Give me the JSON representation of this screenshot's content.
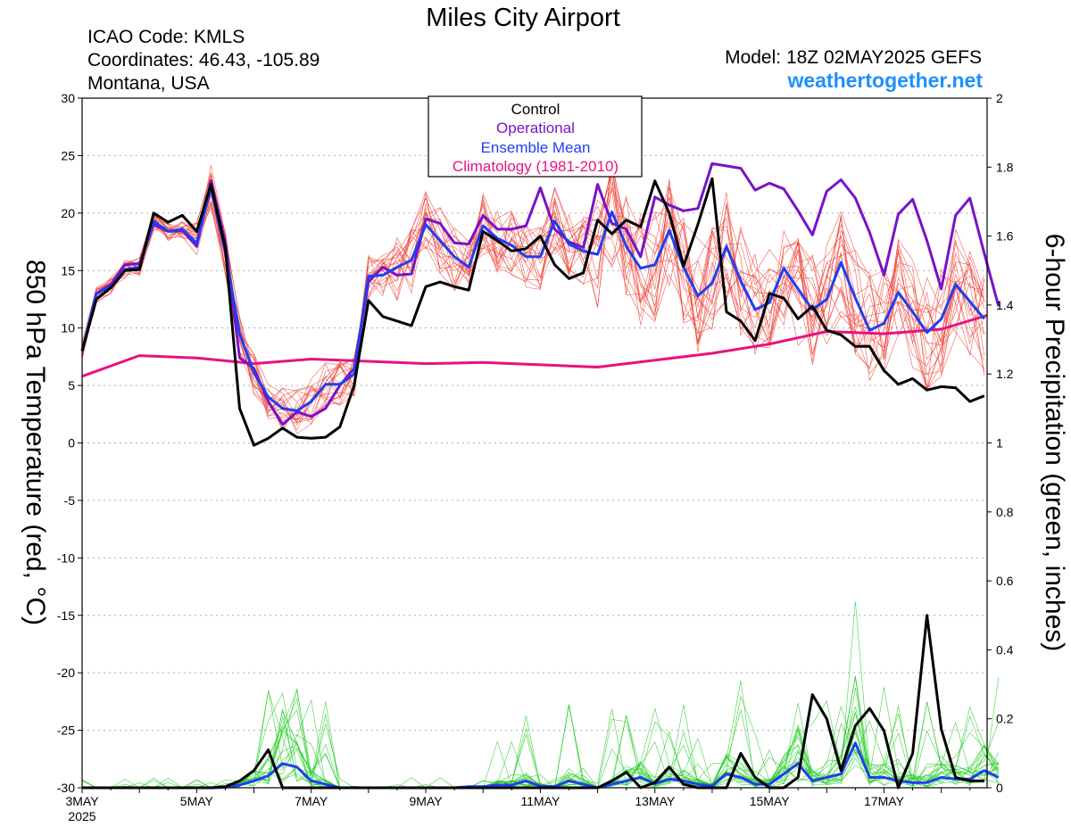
{
  "header": {
    "title": "Miles City Airport",
    "icao": "ICAO Code: KMLS",
    "coords": "Coordinates: 46.43, -105.89",
    "region": "Montana, USA",
    "model": "Model: 18Z 02MAY2025 GEFS",
    "site": "weathertogether.net"
  },
  "colors": {
    "members_temp": "#ee3b2f",
    "members_precip": "#22cc22",
    "control": "#000000",
    "operational": "#7a12c8",
    "mean": "#1f3ff0",
    "climatology": "#e8127f",
    "site": "#1e90ff"
  },
  "chart_data": {
    "type": "line",
    "title": "Miles City Airport",
    "ylabel_left": "850 hPa Temperature (red, °C)",
    "ylabel_right": "6-hour Precipitation (green, inches)",
    "ylim_left": [
      -30,
      30
    ],
    "ylim_right": [
      0,
      2
    ],
    "xlim": [
      0,
      15.8
    ],
    "grid": true,
    "legend_position": "top-center",
    "legend": [
      "Control",
      "Operational",
      "Ensemble Mean",
      "Climatology (1981-2010)"
    ],
    "x_ticks": [
      {
        "x": 0,
        "label": "3MAY",
        "sub": "2025"
      },
      {
        "x": 2,
        "label": "5MAY"
      },
      {
        "x": 4,
        "label": "7MAY"
      },
      {
        "x": 6,
        "label": "9MAY"
      },
      {
        "x": 8,
        "label": "11MAY"
      },
      {
        "x": 10,
        "label": "13MAY"
      },
      {
        "x": 12,
        "label": "15MAY"
      },
      {
        "x": 14,
        "label": "17MAY"
      }
    ],
    "y_ticks_left": [
      30,
      25,
      20,
      15,
      10,
      5,
      0,
      -5,
      -10,
      -15,
      -20,
      -25,
      -30
    ],
    "y_ticks_right": [
      "2",
      "1.8",
      "1.6",
      "1.4",
      "1.2",
      "1",
      "0.8",
      "0.6",
      "0.4",
      "0.2",
      "0"
    ],
    "x_step_days": 0.25,
    "series": [
      {
        "name": "Control",
        "role": "temp",
        "x_start": 0,
        "values": [
          8,
          12.5,
          13.5,
          15,
          15.1,
          20,
          19.2,
          19.8,
          18.4,
          22.5,
          17,
          3,
          -0.2,
          0.4,
          1.3,
          0.5,
          0.4,
          0.5,
          1.4,
          5,
          12.4,
          11,
          10.6,
          10.2,
          13.6,
          14,
          13.6,
          13.3,
          18.4,
          17.6,
          16.7,
          16.9,
          18,
          15.5,
          14.3,
          14.8,
          19.4,
          18.2,
          19.4,
          18.8,
          22.8,
          20,
          15.4,
          19,
          23,
          11.4,
          10.6,
          8.9,
          13,
          12.6,
          10.8,
          11.9,
          9.8,
          9.4,
          8.4,
          8.4,
          6.3,
          5.1,
          5.6,
          4.6,
          4.9,
          4.8,
          3.6,
          4.1
        ]
      },
      {
        "name": "Operational",
        "role": "temp",
        "x_start": 0,
        "values": [
          8,
          13,
          13.8,
          15.5,
          15.6,
          19,
          18.4,
          18.5,
          17.1,
          22.8,
          17.5,
          7.4,
          6.5,
          3.6,
          1.6,
          2.7,
          2.3,
          3,
          5,
          6.5,
          14,
          15.3,
          14.6,
          14.7,
          19.5,
          19.1,
          17.4,
          17.3,
          19.8,
          18.6,
          18.6,
          18.9,
          22.2,
          18.6,
          17.5,
          17,
          22.5,
          19.1,
          18.6,
          16.2,
          21.4,
          20.7,
          20.2,
          20.4,
          24.3,
          24.1,
          23.9,
          22,
          22.6,
          22.1,
          20.2,
          18.1,
          21.9,
          22.9,
          21.3,
          18.3,
          14.6,
          19.9,
          21.2,
          17.6,
          13.4,
          19.8,
          21.3,
          16.5,
          11.9
        ]
      },
      {
        "name": "Ensemble Mean",
        "role": "temp",
        "x_start": 0,
        "values": [
          8,
          13,
          13.6,
          15.1,
          15.3,
          19.3,
          18.4,
          18.6,
          17.4,
          22.2,
          16.6,
          9.5,
          6.1,
          4,
          3,
          2.8,
          3.6,
          5.1,
          5.1,
          6,
          14.5,
          14.6,
          15.3,
          15.9,
          19,
          17.6,
          16.2,
          15.3,
          18.9,
          17.8,
          17.2,
          16.2,
          16.2,
          19.3,
          17.3,
          16.7,
          16.4,
          20.1,
          17.1,
          15.2,
          15.5,
          18.5,
          15.3,
          12.8,
          13.9,
          17.1,
          14.1,
          11.6,
          12.2,
          15.2,
          13.4,
          11.6,
          12.5,
          15.7,
          12.6,
          9.8,
          10.4,
          13.1,
          11.4,
          9.6,
          10.8,
          13.8,
          12.3,
          10.8
        ]
      },
      {
        "name": "Climatology (1981-2010)",
        "role": "temp",
        "x_points": [
          0,
          1,
          2,
          3,
          4,
          5,
          6,
          7,
          8,
          9,
          10,
          11,
          12,
          13,
          14,
          15,
          15.8
        ],
        "values": [
          5.8,
          7.6,
          7.4,
          6.9,
          7.3,
          7.1,
          6.9,
          7.0,
          6.8,
          6.6,
          7.2,
          7.8,
          8.6,
          9.7,
          9.5,
          9.9,
          11.1
        ]
      },
      {
        "name": "Control",
        "role": "precip",
        "x_start": 0,
        "values": [
          0,
          0,
          0,
          0,
          0,
          0,
          0,
          0,
          0,
          0,
          0.003,
          0.02,
          0.05,
          0.11,
          0,
          0,
          0,
          0,
          0,
          0,
          0,
          0,
          0,
          0,
          0,
          0,
          0,
          0,
          0,
          0,
          0,
          0,
          0,
          0,
          0,
          0,
          0,
          0.02,
          0.045,
          0,
          0.015,
          0.06,
          0.01,
          0,
          0,
          0,
          0.1,
          0.03,
          0,
          0,
          0.03,
          0.27,
          0.2,
          0.05,
          0.18,
          0.23,
          0.165,
          0,
          0.1,
          0.5,
          0.17,
          0.03,
          0.02,
          0.02
        ]
      },
      {
        "name": "Ensemble Mean",
        "role": "precip",
        "x_start": 0,
        "values": [
          0,
          0,
          0,
          0,
          0,
          0,
          0,
          0,
          0,
          0,
          0.001,
          0.008,
          0.02,
          0.035,
          0.07,
          0.06,
          0.02,
          0.01,
          0,
          0,
          0,
          0,
          0,
          0,
          0,
          0,
          0,
          0.003,
          0.003,
          0.008,
          0.008,
          0.02,
          0.005,
          0.003,
          0.02,
          0.01,
          0,
          0.01,
          0.02,
          0.03,
          0.012,
          0.025,
          0.02,
          0.01,
          0.005,
          0.04,
          0.03,
          0.01,
          0.01,
          0.04,
          0.07,
          0.02,
          0.03,
          0.04,
          0.13,
          0.03,
          0.03,
          0.02,
          0.015,
          0.015,
          0.03,
          0.025,
          0.025,
          0.05,
          0.03
        ]
      }
    ],
    "members": {
      "temp_count": 20,
      "precip_count": 20,
      "note": "GEFS ensemble member traces"
    }
  }
}
